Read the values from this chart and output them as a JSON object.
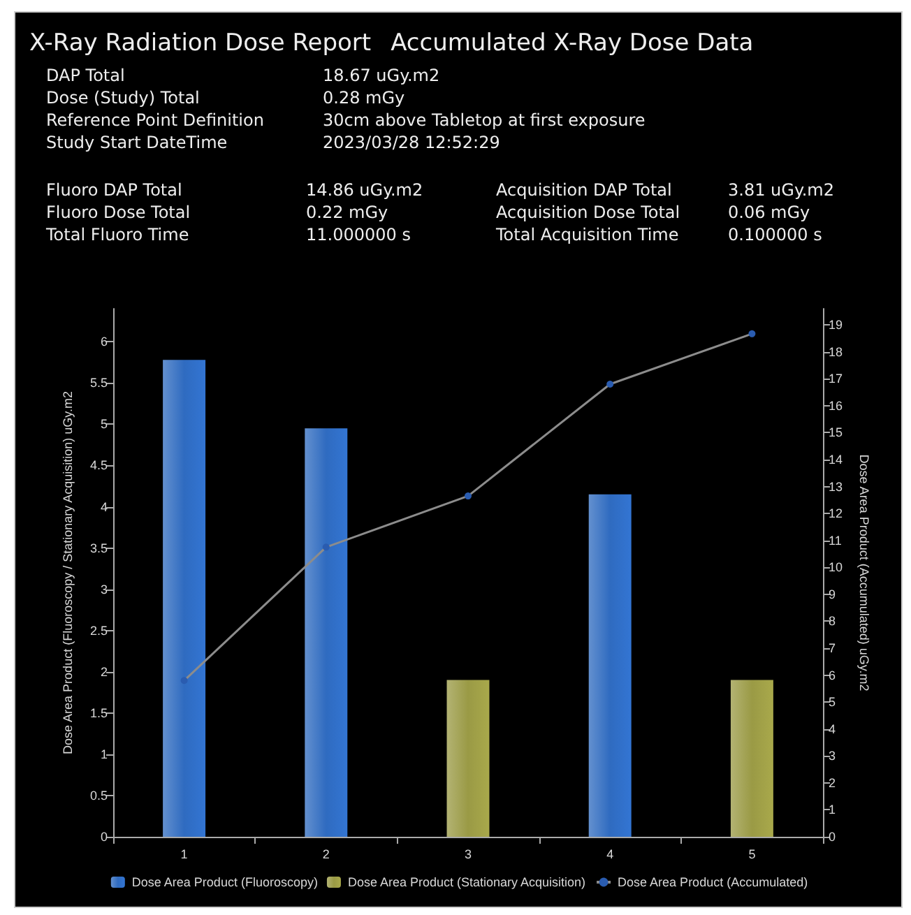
{
  "chart_data": {
    "type": "bar",
    "title": "X-Ray Radiation Dose Report",
    "subtitle": "Accumulated X-Ray Dose Data",
    "annotations": [
      "DAP Total",
      "18.67 uGy.m2",
      "Dose (Study) Total",
      "0.28 mGy",
      "Reference Point Definition",
      "30cm above Tabletop at first exposure",
      "Study Start DateTime",
      "2023/03/28 12:52:29",
      "Fluoro DAP Total",
      "14.86 uGy.m2",
      "Acquisition DAP Total",
      "3.81 uGy.m2",
      "Fluoro Dose Total",
      "0.22 mGy",
      "Acquisition Dose Total",
      "0.06 mGy",
      "Total Fluoro Time",
      "11.000000 s",
      "Total Acquisition Time",
      "0.100000 s"
    ],
    "categories": [
      "1",
      "2",
      "3",
      "4",
      "5"
    ],
    "series": [
      {
        "name": "Dose Area Product (Fluoroscopy)",
        "color": "#2f6bc0",
        "values": [
          5.78,
          4.95,
          null,
          4.15,
          null
        ]
      },
      {
        "name": "Dose Area Product (Stationary Acquisition)",
        "color": "#9a9a45",
        "values": [
          null,
          null,
          1.9,
          null,
          1.9
        ]
      },
      {
        "name": "Dose Area Product (Accumulated)",
        "type": "line",
        "axis": "y2",
        "color": "#2a5cb0",
        "values": [
          5.8,
          10.75,
          12.65,
          16.8,
          18.67
        ]
      }
    ],
    "ylabel": "Dose Area Product (Fluoroscopy / Stationary Acquisition) uGy.m2",
    "y2label": "Dose Area Product (Accumulated) uGy.m2",
    "ylim": [
      0,
      6.4
    ],
    "yticks": [
      0,
      0.5,
      1,
      1.5,
      2,
      2.5,
      3,
      3.5,
      4,
      4.5,
      5,
      5.5,
      6
    ],
    "y2lim": [
      0,
      19.6
    ],
    "y2ticks": [
      0,
      1,
      2,
      3,
      4,
      5,
      6,
      7,
      8,
      9,
      10,
      11,
      12,
      13,
      14,
      15,
      16,
      17,
      18,
      19
    ],
    "legend": "bottom",
    "marker": "circle",
    "grid": false
  }
}
